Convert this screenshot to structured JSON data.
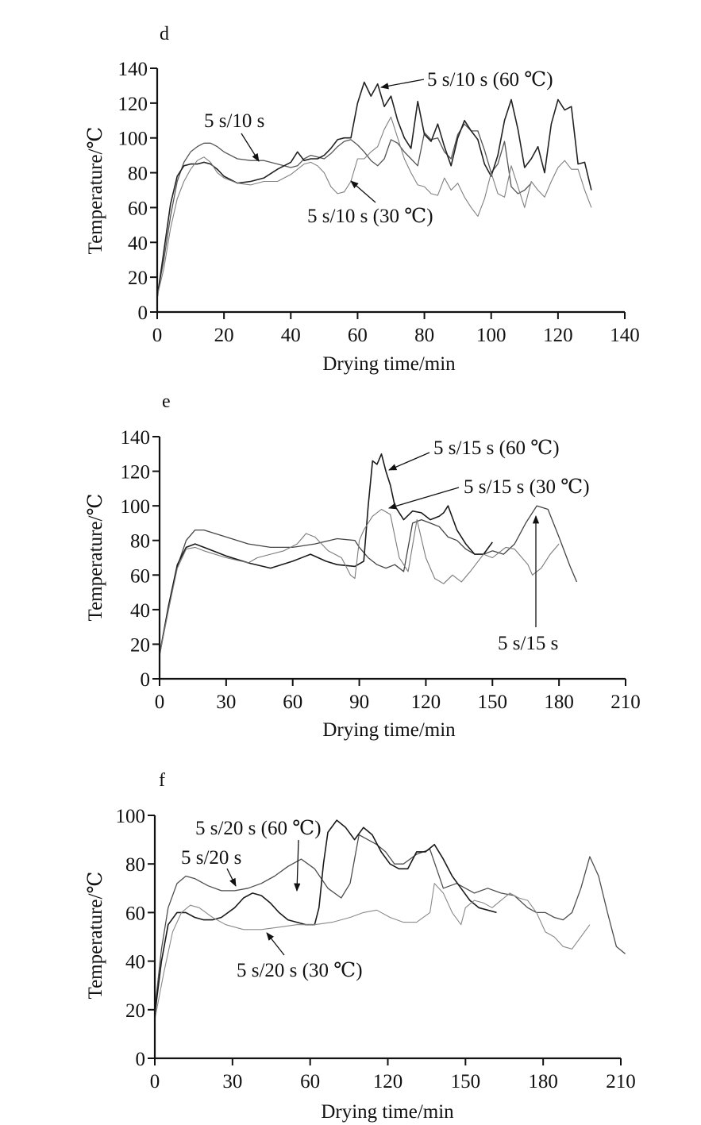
{
  "chart_data": [
    {
      "type": "line",
      "panel": "d",
      "title": "",
      "xlabel": "Drying time/min",
      "ylabel": "Temperature/℃",
      "xlim": [
        0,
        140
      ],
      "ylim": [
        0,
        140
      ],
      "xticks": [
        0,
        20,
        40,
        60,
        80,
        100,
        120,
        140
      ],
      "xtick_labels": [
        "0",
        "20",
        "40",
        "60",
        "80",
        "100",
        "120",
        "140"
      ],
      "yticks": [
        0,
        20,
        40,
        60,
        80,
        100,
        120,
        140
      ],
      "ytick_labels": [
        "0",
        "20",
        "40",
        "60",
        "80",
        "100",
        "120",
        "140"
      ],
      "grid": false,
      "series": [
        {
          "name": "5 s/10 s",
          "color": "#555555",
          "x": [
            0,
            2,
            4,
            6,
            8,
            10,
            12,
            14,
            16,
            18,
            20,
            24,
            28,
            32,
            36,
            40,
            42,
            44,
            46,
            48,
            50,
            52,
            54,
            56,
            58,
            60,
            62,
            64,
            66,
            68,
            70,
            72,
            74,
            76,
            78,
            80,
            82,
            84,
            86,
            88,
            90,
            92,
            94,
            96,
            98,
            100,
            102,
            104,
            106,
            108,
            110,
            112
          ],
          "values": [
            10,
            30,
            55,
            75,
            86,
            92,
            95,
            97,
            97,
            95,
            92,
            88,
            87,
            87,
            85,
            83,
            84,
            88,
            90,
            89,
            88,
            91,
            95,
            98,
            99,
            96,
            92,
            87,
            84,
            88,
            99,
            97,
            92,
            88,
            84,
            103,
            99,
            100,
            92,
            88,
            102,
            108,
            104,
            104,
            93,
            80,
            85,
            98,
            72,
            68,
            70,
            74
          ]
        },
        {
          "name": "5 s/10 s (60 ℃)",
          "color": "#222222",
          "x": [
            0,
            2,
            4,
            6,
            8,
            10,
            12,
            14,
            16,
            18,
            20,
            24,
            28,
            32,
            36,
            40,
            42,
            44,
            46,
            48,
            50,
            52,
            54,
            56,
            58,
            60,
            62,
            64,
            66,
            68,
            70,
            72,
            74,
            76,
            78,
            80,
            82,
            84,
            86,
            88,
            90,
            92,
            94,
            96,
            98,
            100,
            102,
            104,
            106,
            108,
            110,
            112,
            114,
            116,
            118,
            120,
            122,
            124,
            126,
            128,
            130
          ],
          "values": [
            8,
            35,
            62,
            78,
            84,
            85,
            85,
            86,
            85,
            82,
            78,
            74,
            75,
            77,
            82,
            86,
            92,
            87,
            88,
            88,
            90,
            94,
            99,
            100,
            100,
            120,
            132,
            124,
            131,
            118,
            124,
            110,
            100,
            94,
            121,
            102,
            98,
            108,
            95,
            84,
            100,
            110,
            104,
            99,
            85,
            78,
            90,
            110,
            122,
            105,
            83,
            88,
            95,
            80,
            108,
            122,
            116,
            118,
            85,
            86,
            70
          ]
        },
        {
          "name": "5 s/10 s (30 ℃)",
          "color": "#808080",
          "x": [
            0,
            2,
            4,
            6,
            8,
            10,
            12,
            14,
            16,
            18,
            20,
            24,
            28,
            32,
            36,
            40,
            44,
            46,
            48,
            50,
            52,
            54,
            56,
            58,
            60,
            62,
            64,
            66,
            68,
            70,
            72,
            74,
            76,
            78,
            80,
            82,
            84,
            86,
            88,
            90,
            92,
            94,
            96,
            98,
            100,
            102,
            104,
            106,
            108,
            110,
            112,
            114,
            116,
            118,
            120,
            122,
            124,
            126,
            128,
            130
          ],
          "values": [
            9,
            25,
            48,
            65,
            75,
            82,
            87,
            89,
            86,
            80,
            77,
            74,
            73,
            75,
            75,
            79,
            85,
            86,
            84,
            80,
            72,
            68,
            69,
            75,
            88,
            88,
            92,
            95,
            105,
            112,
            100,
            88,
            80,
            73,
            72,
            68,
            67,
            77,
            70,
            74,
            66,
            60,
            55,
            65,
            80,
            68,
            66,
            84,
            72,
            60,
            75,
            70,
            66,
            75,
            83,
            87,
            82,
            82,
            70,
            60
          ]
        }
      ],
      "annotations": [
        {
          "text": "5 s/10 s",
          "points_to": "5 s/10 s",
          "arrow_tip": [
            31,
            87
          ]
        },
        {
          "text": "5 s/10 s (60 ℃)",
          "points_to": "5 s/10 s (60 ℃)",
          "arrow_tip": [
            67,
            130
          ]
        },
        {
          "text": "5 s/10 s (30 ℃)",
          "points_to": "5 s/10 s (30 ℃)",
          "arrow_tip": [
            57,
            76
          ]
        }
      ]
    },
    {
      "type": "line",
      "panel": "e",
      "title": "",
      "xlabel": "Drying time/min",
      "ylabel": "Temperature/℃",
      "xlim": [
        0,
        210
      ],
      "ylim": [
        0,
        140
      ],
      "xticks": [
        0,
        30,
        60,
        90,
        120,
        150,
        180,
        210
      ],
      "xtick_labels": [
        "0",
        "30",
        "60",
        "90",
        "120",
        "150",
        "180",
        "210"
      ],
      "yticks": [
        0,
        20,
        40,
        60,
        80,
        100,
        120,
        140
      ],
      "ytick_labels": [
        "0",
        "20",
        "40",
        "60",
        "80",
        "100",
        "120",
        "140"
      ],
      "grid": false,
      "series": [
        {
          "name": "5 s/15 s",
          "color": "#444444",
          "x": [
            0,
            4,
            8,
            12,
            16,
            20,
            30,
            40,
            50,
            60,
            70,
            80,
            88,
            90,
            94,
            98,
            102,
            106,
            110,
            114,
            118,
            122,
            126,
            130,
            134,
            138,
            142,
            146,
            150,
            155,
            160,
            165,
            170,
            175,
            180,
            185,
            188
          ],
          "values": [
            14,
            40,
            65,
            80,
            86,
            86,
            82,
            78,
            76,
            76,
            78,
            81,
            80,
            76,
            70,
            66,
            64,
            66,
            62,
            90,
            92,
            90,
            88,
            82,
            80,
            75,
            72,
            72,
            74,
            72,
            78,
            90,
            100,
            98,
            82,
            65,
            56
          ]
        },
        {
          "name": "5 s/15 s (60 ℃)",
          "color": "#1a1a1a",
          "x": [
            0,
            4,
            8,
            12,
            16,
            20,
            30,
            40,
            50,
            60,
            68,
            75,
            80,
            88,
            92,
            94,
            96,
            98,
            100,
            102,
            104,
            106,
            108,
            110,
            114,
            118,
            122,
            126,
            128,
            130,
            134,
            138,
            142,
            146,
            150
          ],
          "values": [
            14,
            42,
            66,
            76,
            78,
            76,
            71,
            67,
            64,
            68,
            72,
            68,
            66,
            65,
            68,
            100,
            126,
            124,
            130,
            120,
            112,
            100,
            96,
            92,
            97,
            96,
            92,
            94,
            96,
            100,
            86,
            78,
            72,
            72,
            79
          ]
        },
        {
          "name": "5 s/15 s (30 ℃)",
          "color": "#7a7a7a",
          "x": [
            0,
            4,
            8,
            12,
            16,
            20,
            30,
            40,
            44,
            50,
            56,
            62,
            66,
            70,
            76,
            82,
            86,
            88,
            90,
            92,
            96,
            100,
            104,
            108,
            112,
            116,
            120,
            124,
            128,
            132,
            136,
            140,
            146,
            150,
            156,
            160,
            166,
            168,
            172,
            176,
            180
          ],
          "values": [
            14,
            40,
            64,
            75,
            76,
            74,
            70,
            67,
            70,
            72,
            74,
            78,
            84,
            82,
            74,
            70,
            60,
            58,
            80,
            86,
            94,
            98,
            95,
            70,
            62,
            92,
            70,
            58,
            55,
            60,
            56,
            62,
            72,
            70,
            76,
            75,
            66,
            60,
            64,
            72,
            78
          ]
        }
      ],
      "annotations": [
        {
          "text": "5 s/15 s (60 ℃)",
          "points_to": "5 s/15 s (60 ℃)",
          "arrow_tip": [
            103,
            120
          ]
        },
        {
          "text": "5 s/15 s (30 ℃)",
          "points_to": "5 s/15 s (30 ℃)",
          "arrow_tip": [
            102,
            98
          ]
        },
        {
          "text": "5 s/15 s",
          "points_to": "5 s/15 s",
          "arrow_tip": [
            168,
            98
          ]
        }
      ]
    },
    {
      "type": "line",
      "panel": "f",
      "title": "",
      "xlabel": "Drying time/min",
      "ylabel": "Temperature/℃",
      "xlim": [
        0,
        210
      ],
      "ylim": [
        0,
        100
      ],
      "xticks": [
        0,
        35,
        70,
        105,
        140,
        175,
        210
      ],
      "xtick_labels": [
        "0",
        "30",
        "60",
        "120",
        "150",
        "180",
        "210"
      ],
      "yticks": [
        0,
        20,
        40,
        60,
        80,
        100
      ],
      "ytick_labels": [
        "0",
        "20",
        "40",
        "60",
        "80",
        "100"
      ],
      "grid": false,
      "note": "x-axis tick labels printed as 0, 30, 60, 120, 150, 180, 210 at evenly spaced positions; x values below are in visual axis units",
      "series": [
        {
          "name": "5 s/20 s",
          "color": "#4d4d4d",
          "x": [
            0,
            3,
            6,
            10,
            14,
            18,
            24,
            30,
            36,
            42,
            48,
            54,
            60,
            66,
            72,
            78,
            84,
            88,
            92,
            96,
            100,
            104,
            108,
            112,
            118,
            124,
            130,
            136,
            140,
            144,
            150,
            156,
            162,
            168,
            172,
            176,
            180,
            184,
            188,
            192,
            196,
            200,
            204,
            208,
            212
          ],
          "values": [
            20,
            45,
            62,
            72,
            75,
            74,
            71,
            69,
            69,
            70,
            72,
            75,
            79,
            82,
            78,
            70,
            66,
            72,
            92,
            90,
            88,
            85,
            80,
            80,
            84,
            86,
            70,
            72,
            70,
            68,
            70,
            68,
            67,
            62,
            60,
            60,
            58,
            57,
            60,
            70,
            83,
            75,
            60,
            46,
            43
          ]
        },
        {
          "name": "5 s/20 s (60 ℃)",
          "color": "#1a1a1a",
          "x": [
            0,
            3,
            6,
            10,
            14,
            18,
            22,
            26,
            30,
            36,
            40,
            44,
            48,
            52,
            56,
            60,
            64,
            68,
            72,
            74,
            76,
            78,
            82,
            86,
            90,
            94,
            98,
            102,
            106,
            110,
            114,
            118,
            122,
            126,
            130,
            134,
            138,
            142,
            146,
            150,
            154
          ],
          "values": [
            18,
            40,
            55,
            60,
            60,
            58,
            57,
            57,
            58,
            62,
            66,
            68,
            67,
            64,
            60,
            57,
            56,
            55,
            55,
            62,
            80,
            93,
            98,
            95,
            90,
            95,
            92,
            85,
            80,
            78,
            78,
            85,
            85,
            88,
            82,
            75,
            70,
            65,
            62,
            61,
            60
          ]
        },
        {
          "name": "5 s/20 s (30 ℃)",
          "color": "#8a8a8a",
          "x": [
            0,
            4,
            8,
            12,
            16,
            20,
            26,
            32,
            40,
            48,
            56,
            64,
            72,
            80,
            88,
            94,
            100,
            106,
            112,
            118,
            124,
            126,
            130,
            134,
            138,
            140,
            144,
            148,
            152,
            156,
            160,
            164,
            168,
            172,
            176,
            180,
            184,
            188,
            192,
            196
          ],
          "values": [
            16,
            35,
            52,
            60,
            63,
            62,
            58,
            55,
            53,
            53,
            54,
            55,
            55,
            56,
            58,
            60,
            61,
            58,
            56,
            56,
            60,
            72,
            68,
            60,
            55,
            62,
            65,
            64,
            62,
            65,
            68,
            66,
            65,
            60,
            52,
            50,
            46,
            45,
            50,
            55
          ]
        }
      ],
      "annotations": [
        {
          "text": "5 s/20 s (60 ℃)",
          "points_to": "5 s/20 s (60 ℃)",
          "arrow_tip": [
            55,
            68
          ]
        },
        {
          "text": "5 s/20 s",
          "points_to": "5 s/20 s",
          "arrow_tip": [
            32,
            70
          ]
        },
        {
          "text": "5 s/20 s (30 ℃)",
          "points_to": "5 s/20 s (30 ℃)",
          "arrow_tip": [
            45,
            53
          ]
        }
      ]
    }
  ]
}
